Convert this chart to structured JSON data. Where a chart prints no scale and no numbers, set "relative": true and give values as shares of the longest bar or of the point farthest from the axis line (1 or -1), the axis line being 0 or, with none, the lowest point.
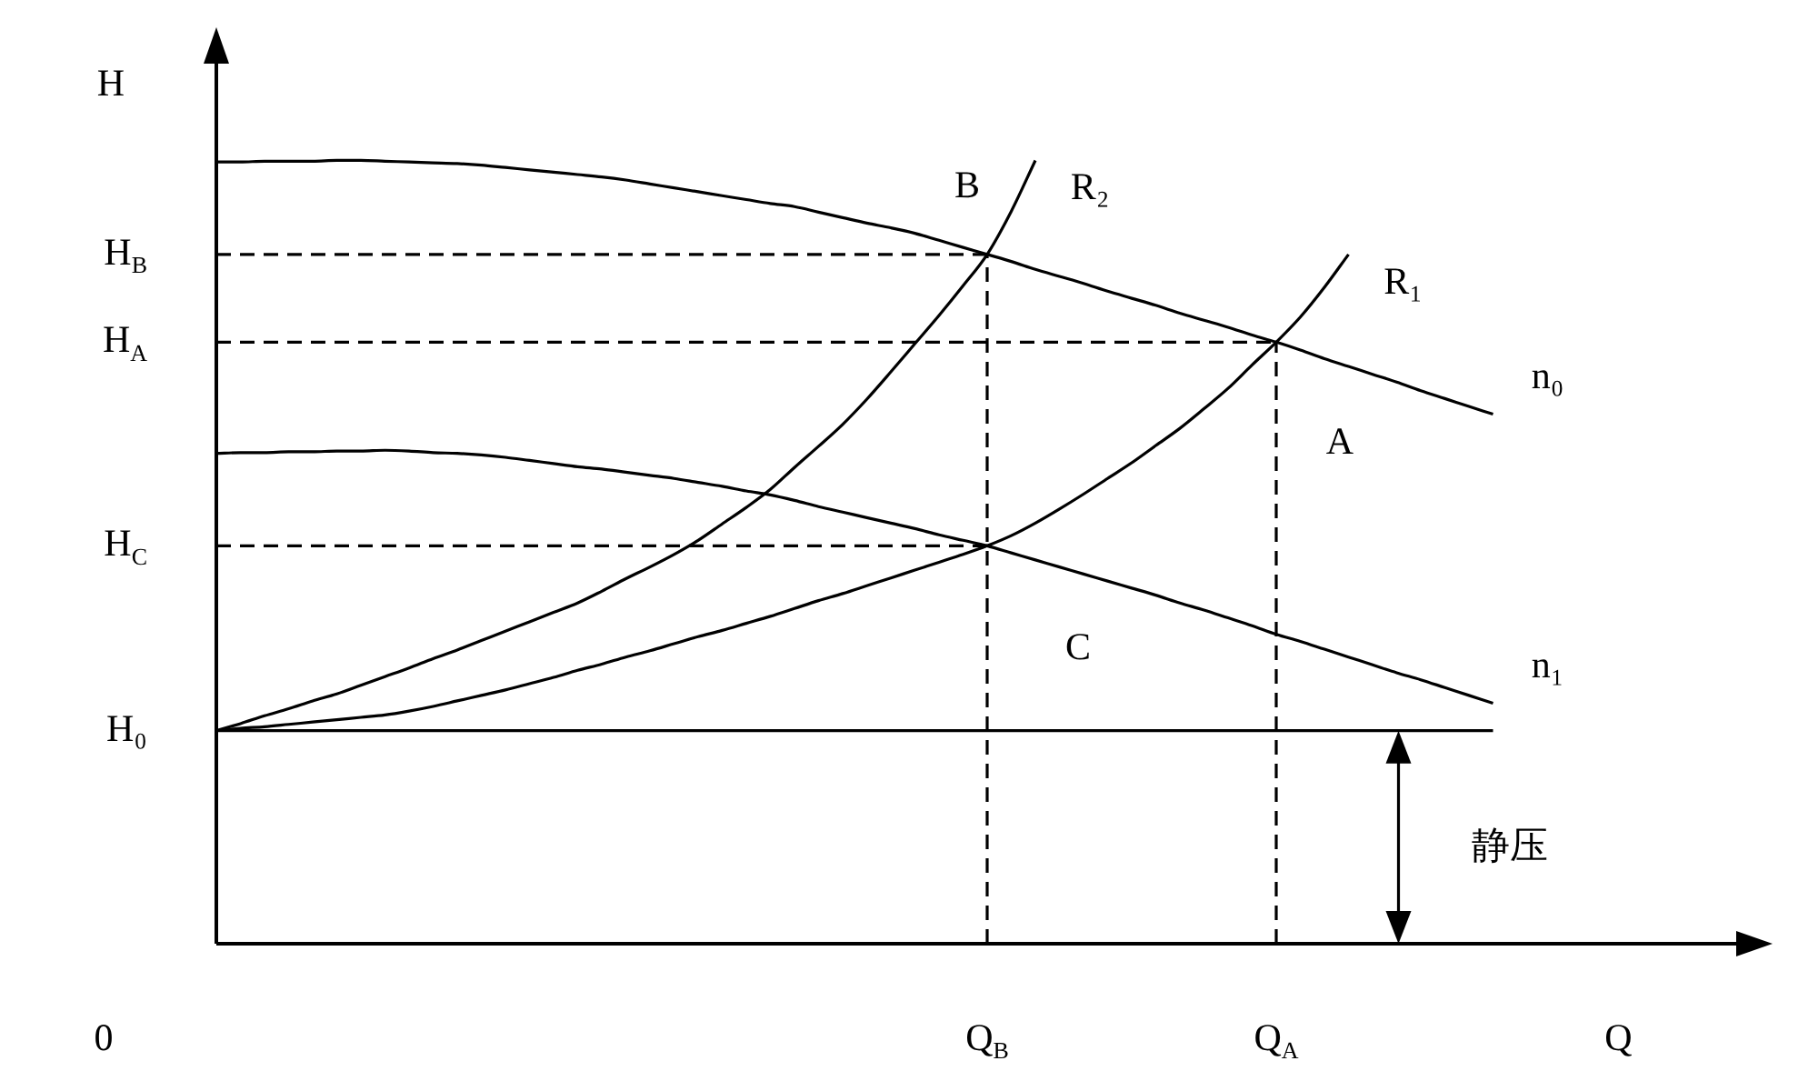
{
  "chart_data": {
    "type": "line",
    "relative": true,
    "xlabel": "Q",
    "ylabel": "H",
    "line_style": "solid",
    "categories": [
      null,
      null,
      null,
      null,
      null,
      null,
      null,
      null,
      null,
      null,
      null,
      null,
      null,
      null,
      null,
      null,
      null,
      null,
      null,
      null,
      null,
      null,
      null,
      null,
      null,
      null,
      null,
      null,
      null,
      null,
      null,
      null,
      "Q$_{B}$",
      null,
      null,
      null,
      null,
      null,
      null,
      null,
      null,
      null,
      null,
      null,
      "Q$_{A}$",
      null,
      null,
      null,
      null,
      null,
      null,
      null,
      null,
      null
    ],
    "series": [
      {
        "name": "n₀",
        "color": "#000000",
        "values": [
          0.998,
          0.998,
          0.999,
          0.999,
          0.999,
          1.0,
          1.0,
          0.999,
          0.998,
          0.997,
          0.996,
          0.994,
          0.991,
          0.988,
          0.985,
          0.982,
          0.979,
          0.975,
          0.97,
          0.965,
          0.96,
          0.955,
          0.95,
          0.945,
          0.941,
          0.934,
          0.927,
          0.92,
          0.914,
          0.907,
          0.898,
          0.889,
          0.88,
          0.871,
          0.861,
          0.852,
          0.843,
          0.833,
          0.824,
          0.815,
          0.805,
          0.796,
          0.787,
          0.777,
          0.768,
          0.758,
          0.747,
          0.737,
          0.727,
          0.717,
          0.706,
          0.696,
          0.686,
          0.676
        ]
      },
      {
        "name": "n₁",
        "color": "#000000",
        "values": [
          0.626,
          0.627,
          0.627,
          0.628,
          0.628,
          0.629,
          0.629,
          0.63,
          0.629,
          0.627,
          0.626,
          0.624,
          0.621,
          0.617,
          0.613,
          0.609,
          0.606,
          0.602,
          0.598,
          0.594,
          0.589,
          0.584,
          0.578,
          0.573,
          0.566,
          0.558,
          0.551,
          0.544,
          0.537,
          0.53,
          0.522,
          0.515,
          0.508,
          0.499,
          0.49,
          0.481,
          0.472,
          0.463,
          0.454,
          0.445,
          0.435,
          0.426,
          0.416,
          0.406,
          0.395,
          0.386,
          0.376,
          0.366,
          0.356,
          0.346,
          0.337,
          0.327,
          0.317,
          0.307
        ]
      },
      {
        "name": "R₂",
        "color": "#000000",
        "values": [
          0.272,
          0.281,
          0.291,
          0.3,
          0.31,
          0.319,
          0.33,
          0.341,
          0.352,
          0.364,
          0.375,
          0.387,
          0.399,
          0.411,
          0.423,
          0.435,
          0.45,
          0.466,
          0.481,
          0.497,
          0.515,
          0.536,
          0.557,
          0.58,
          0.608,
          0.635,
          0.663,
          0.695,
          0.73,
          0.766,
          0.802,
          0.84,
          0.88,
          0.935,
          1.0,
          null,
          null,
          null,
          null,
          null,
          null,
          null,
          null,
          null,
          null,
          null,
          null,
          null,
          null,
          null,
          null,
          null,
          null,
          null
        ]
      },
      {
        "name": "R₁",
        "color": "#000000",
        "values": [
          0.272,
          0.275,
          0.277,
          0.28,
          0.283,
          0.286,
          0.289,
          0.292,
          0.297,
          0.303,
          0.31,
          0.317,
          0.324,
          0.332,
          0.34,
          0.349,
          0.357,
          0.366,
          0.374,
          0.383,
          0.392,
          0.4,
          0.409,
          0.418,
          0.428,
          0.438,
          0.447,
          0.457,
          0.467,
          0.477,
          0.487,
          0.497,
          0.508,
          0.521,
          0.537,
          0.555,
          0.574,
          0.594,
          0.614,
          0.636,
          0.658,
          0.683,
          0.709,
          0.739,
          0.768,
          0.8,
          0.838,
          0.88,
          null,
          null,
          null,
          null,
          null,
          null
        ]
      }
    ],
    "ref_lines": [
      {
        "axis": "y",
        "value": 0.88,
        "label": "H$_{B}$",
        "line_style": "dashed"
      },
      {
        "axis": "y",
        "value": 0.768,
        "label": "H$_{A}$",
        "line_style": "dashed"
      },
      {
        "axis": "y",
        "value": 0.508,
        "label": "H$_{C}$",
        "line_style": "dashed"
      },
      {
        "axis": "y",
        "value": 0.272,
        "label": "H₀"
      },
      {
        "axis": "x",
        "value": "Q$_{B}$",
        "line_style": "dashed"
      },
      {
        "axis": "x",
        "value": "Q$_{A}$",
        "line_style": "dashed"
      }
    ],
    "annotations": [
      "0",
      "静压",
      {
        "text": "B",
        "x": "Q$_{B}$",
        "y": 0.88
      },
      {
        "text": "A",
        "x": "Q$_{A}$",
        "y": 0.768
      },
      {
        "text": "C",
        "x": "Q$_{B}$",
        "y": 0.508
      }
    ]
  }
}
